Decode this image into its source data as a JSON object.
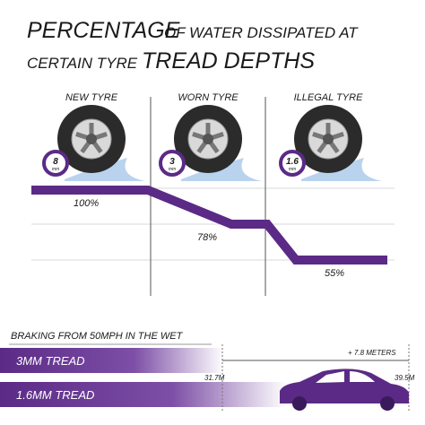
{
  "title": {
    "line1": {
      "big": "PERCENTAGE",
      "small": "OF WATER DISSIPATED AT"
    },
    "line2": {
      "small": "CERTAIN TYRE",
      "big": "TREAD DEPTHS"
    }
  },
  "tyres": [
    {
      "label": "NEW TYRE",
      "depth": "8",
      "unit": "mm",
      "percent": "100%"
    },
    {
      "label": "WORN TYRE",
      "depth": "3",
      "unit": "mm",
      "percent": "78%"
    },
    {
      "label": "ILLEGAL TYRE",
      "depth": "1.6",
      "unit": "mm",
      "percent": "55%"
    }
  ],
  "braking": {
    "heading": "BRAKING FROM 50MPH IN THE WET",
    "bars": [
      {
        "label": "3MM TREAD",
        "distance": "31.7M"
      },
      {
        "label": "1.6MM TREAD",
        "distance": "39.5M"
      }
    ],
    "difference": "+ 7.8 METERS"
  }
}
